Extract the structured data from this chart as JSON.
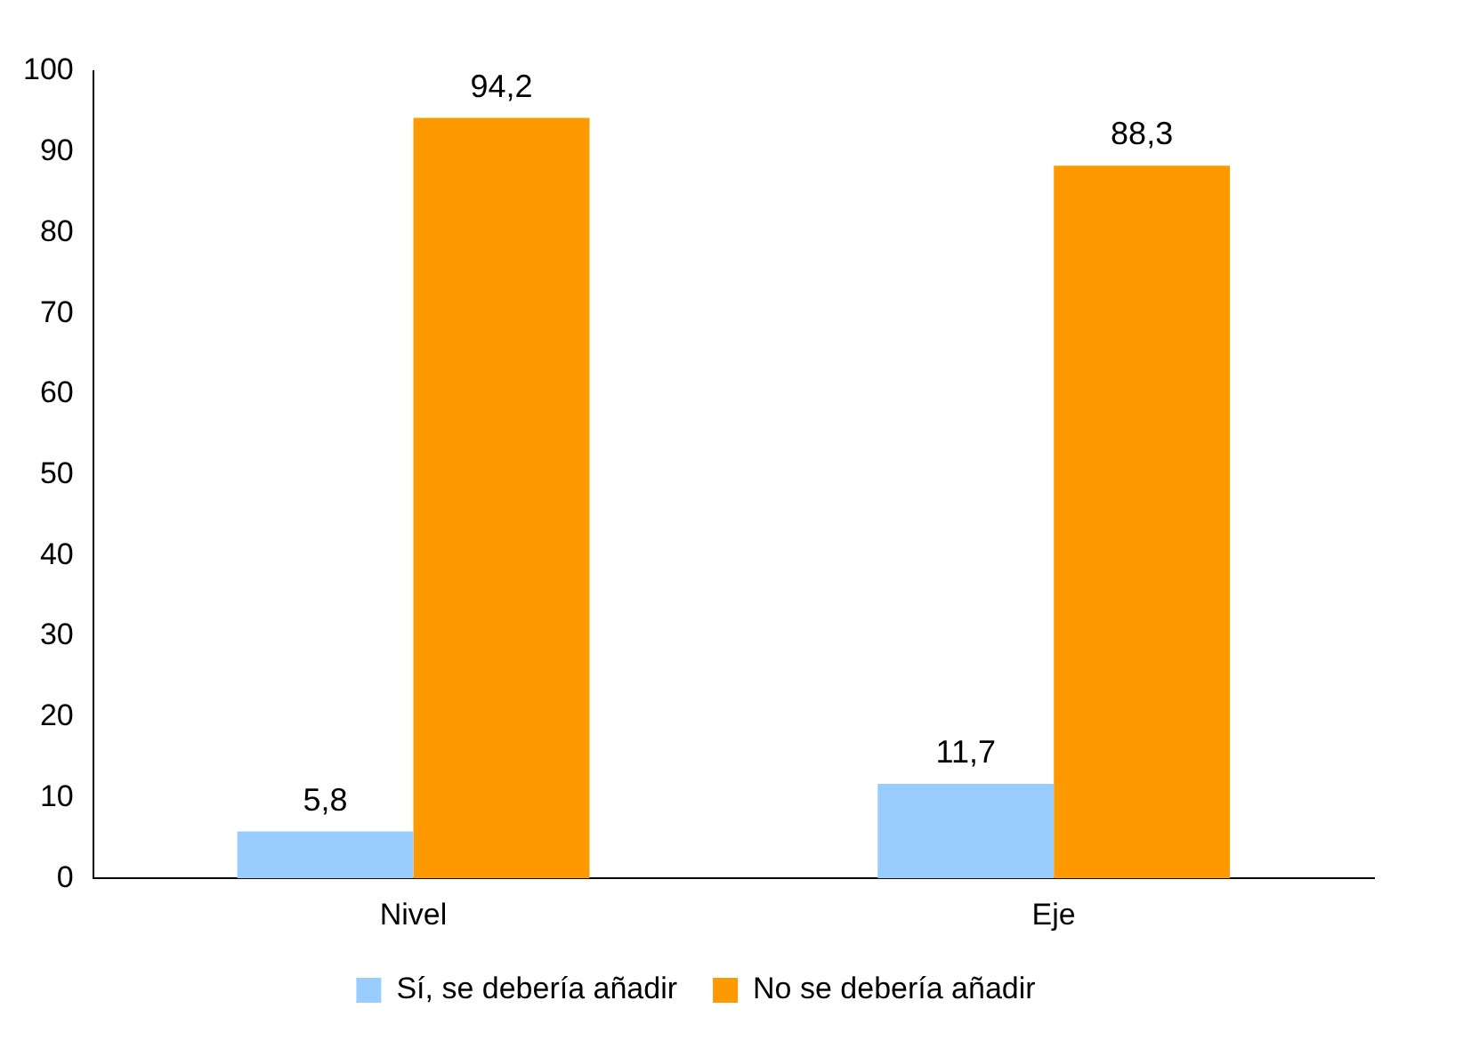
{
  "chart_data": {
    "type": "bar",
    "categories": [
      "Nivel",
      "Eje"
    ],
    "series": [
      {
        "name": "Sí, se debería añadir",
        "color": "#99ccff",
        "values": [
          5.8,
          11.7
        ],
        "value_labels": [
          "5,8",
          "11,7"
        ]
      },
      {
        "name": "No se debería añadir",
        "color": "#ff9900",
        "values": [
          94.2,
          88.3
        ],
        "value_labels": [
          "94,2",
          "88,3"
        ]
      }
    ],
    "ylim": [
      0,
      100
    ],
    "yticks": [
      0,
      10,
      20,
      30,
      40,
      50,
      60,
      70,
      80,
      90,
      100
    ],
    "grid": false,
    "legend": "bottom"
  }
}
